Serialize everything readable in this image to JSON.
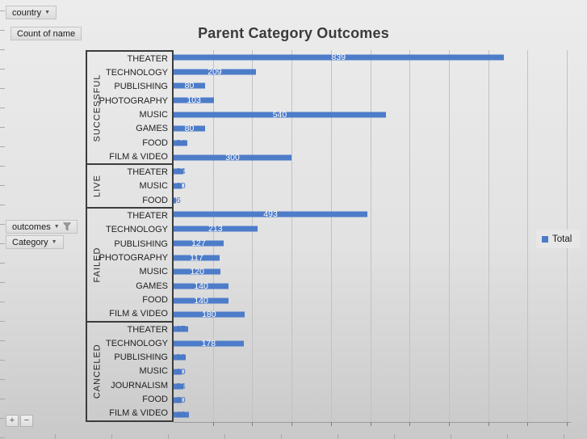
{
  "field_buttons": {
    "country": "country",
    "count_of_name": "Count of name",
    "outcomes": "outcomes",
    "category": "Category",
    "expand": "+",
    "collapse": "−"
  },
  "chart_data": {
    "type": "bar",
    "orientation": "horizontal",
    "title": "Parent Category Outcomes",
    "legend": {
      "label": "Total",
      "position": "right"
    },
    "bar_color": "#4d7cc9",
    "outside_label_color": "#4472c4",
    "axis": {
      "min": 0,
      "max": 1000,
      "gridline_step": 100,
      "gridlines": true,
      "value_tick_labels_visible": false
    },
    "groups": [
      {
        "outcome": "SUCCESSFUL",
        "items": [
          {
            "label": "THEATER",
            "value": 839
          },
          {
            "label": "TECHNOLOGY",
            "value": 209
          },
          {
            "label": "PUBLISHING",
            "value": 80
          },
          {
            "label": "PHOTOGRAPHY",
            "value": 103
          },
          {
            "label": "MUSIC",
            "value": 540
          },
          {
            "label": "GAMES",
            "value": 80
          },
          {
            "label": "FOOD",
            "value": 34
          },
          {
            "label": "FILM & VIDEO",
            "value": 300
          }
        ]
      },
      {
        "outcome": "LIVE",
        "items": [
          {
            "label": "THEATER",
            "value": 24
          },
          {
            "label": "MUSIC",
            "value": 20
          },
          {
            "label": "FOOD",
            "value": 6
          }
        ]
      },
      {
        "outcome": "FAILED",
        "items": [
          {
            "label": "THEATER",
            "value": 493
          },
          {
            "label": "TECHNOLOGY",
            "value": 213
          },
          {
            "label": "PUBLISHING",
            "value": 127
          },
          {
            "label": "PHOTOGRAPHY",
            "value": 117
          },
          {
            "label": "MUSIC",
            "value": 120
          },
          {
            "label": "GAMES",
            "value": 140
          },
          {
            "label": "FOOD",
            "value": 140
          },
          {
            "label": "FILM & VIDEO",
            "value": 180
          }
        ]
      },
      {
        "outcome": "CANCELED",
        "items": [
          {
            "label": "THEATER",
            "value": 37
          },
          {
            "label": "TECHNOLOGY",
            "value": 178
          },
          {
            "label": "PUBLISHING",
            "value": 30
          },
          {
            "label": "MUSIC",
            "value": 20
          },
          {
            "label": "JOURNALISM",
            "value": 24
          },
          {
            "label": "FOOD",
            "value": 20
          },
          {
            "label": "FILM & VIDEO",
            "value": 40
          }
        ]
      }
    ]
  }
}
